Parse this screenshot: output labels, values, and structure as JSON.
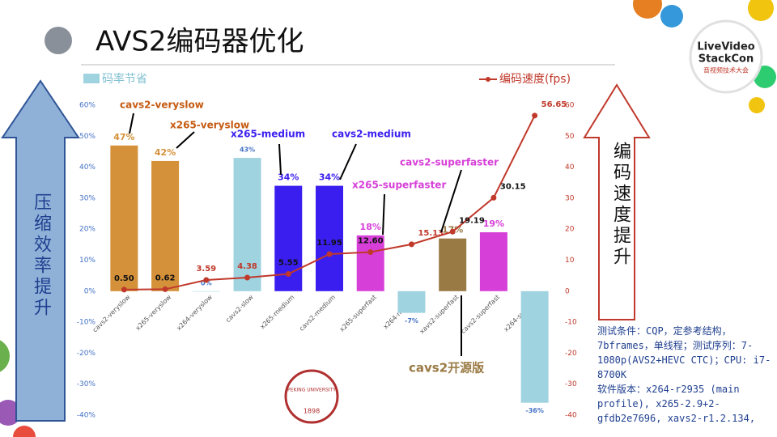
{
  "slide": {
    "title": "AVS2编码器优化",
    "left_arrow": "压缩效率提升",
    "right_arrow": "编码速度提升",
    "notes": [
      "测试条件：CQP，定参考结构，7bframes，单线程；测试序列：7-1080p(AVS2+HEVC CTC)；CPU: i7-8700K",
      "软件版本：x264-r2935 (main profile), x265-2.9+2-gfdb2e7696, xavs2-r1.2.134,"
    ],
    "logo": [
      "LiveVideo",
      "StackCon",
      "音视频技术大会"
    ],
    "seal": [
      "PEKING UNIVERSITY",
      "1898"
    ]
  },
  "chart_data": {
    "type": "combo",
    "categories": [
      "cavs2-veryslow",
      "x265-veryslow",
      "x264-veryslow",
      "cavs2-slow",
      "x265-medium",
      "cavs2-medium",
      "x265-superfast",
      "x264-medium",
      "xavs2-superfast",
      "cavs2-superfast",
      "x264-superfast"
    ],
    "series": [
      {
        "name": "码率节省",
        "type": "bar",
        "color": "#9fd3e0",
        "colors": [
          "#d4913a",
          "#d4913a",
          "#9fd3e0",
          "#9fd3e0",
          "#3a1ef0",
          "#3a1ef0",
          "#d63fd8",
          "#9fd3e0",
          "#9a7a44",
          "#d63fd8",
          "#9fd3e0"
        ],
        "values": [
          47,
          42,
          0,
          43,
          34,
          34,
          18,
          -7,
          17,
          19,
          -36
        ],
        "value_labels": [
          "47%",
          "42%",
          "0%",
          "43%",
          "34%",
          "34%",
          "18%",
          "-7%",
          "17%",
          "19%",
          "-36%"
        ]
      },
      {
        "name": "编码速度(fps)",
        "type": "line",
        "axis": "y2",
        "color": "#c0392b",
        "values": [
          0.5,
          0.62,
          3.59,
          4.38,
          5.55,
          11.95,
          12.6,
          15.13,
          19.19,
          30.15,
          56.65
        ],
        "value_labels": [
          "0.50",
          "0.62",
          "3.59",
          "4.38",
          "5.55",
          "11.95",
          "12.60",
          "15.13",
          "19.19",
          "30.15",
          "56.65"
        ]
      }
    ],
    "ylim": [
      -40,
      60
    ],
    "yticks": [
      {
        "value": -40,
        "label": "-40%"
      },
      {
        "value": -30,
        "label": "-30%"
      },
      {
        "value": -20,
        "label": "-20%"
      },
      {
        "value": -10,
        "label": "-10%"
      },
      {
        "value": 0,
        "label": "0%"
      },
      {
        "value": 10,
        "label": "10%"
      },
      {
        "value": 20,
        "label": "20%"
      },
      {
        "value": 30,
        "label": "30%"
      },
      {
        "value": 40,
        "label": "40%"
      },
      {
        "value": 50,
        "label": "50%"
      },
      {
        "value": 60,
        "label": "60%"
      }
    ],
    "y2lim": [
      -40,
      60
    ],
    "y2ticks": [
      -40,
      -30,
      -20,
      -10,
      0,
      10,
      20,
      30,
      40,
      50,
      60
    ],
    "annotations": [
      "cavs2-veryslow",
      "x265-veryslow",
      "x265-medium",
      "cavs2-medium",
      "x265-superfaster",
      "cavs2-superfaster",
      "cavs2开源版"
    ]
  }
}
